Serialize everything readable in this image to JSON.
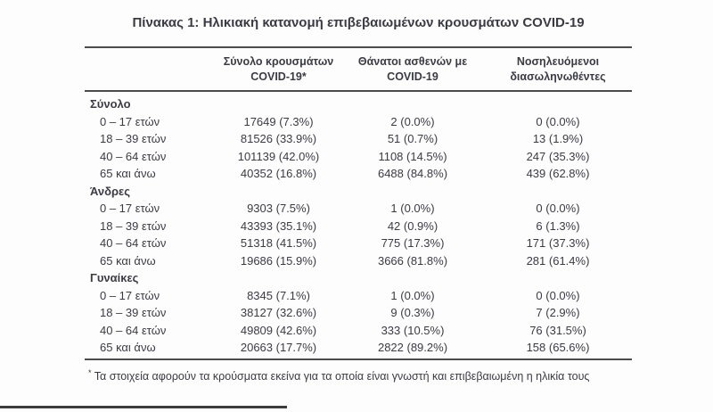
{
  "title": "Πίνακας 1: Ηλικιακή κατανομή επιβεβαιωμένων κρουσμάτων COVID-19",
  "colors": {
    "text": "#3b3b44",
    "rule": "#4b4b4b",
    "background": "#fdfdfd"
  },
  "table": {
    "col_headers": [
      {
        "line1": "Σύνολο κρουσμάτων",
        "line2": "COVID-19*"
      },
      {
        "line1": "Θάνατοι ασθενών με",
        "line2": "COVID-19"
      },
      {
        "line1": "Νοσηλευόμενοι",
        "line2": "διασωληνωθέντες"
      }
    ],
    "sections": [
      {
        "label": "Σύνολο",
        "rows": [
          {
            "label": "0 – 17 ετών",
            "cases": "17649 (7.3%)",
            "deaths": "2 (0.0%)",
            "intubated": "0 (0.0%)"
          },
          {
            "label": "18 – 39 ετών",
            "cases": "81526 (33.9%)",
            "deaths": "51 (0.7%)",
            "intubated": "13 (1.9%)"
          },
          {
            "label": "40 – 64 ετών",
            "cases": "101139 (42.0%)",
            "deaths": "1108 (14.5%)",
            "intubated": "247 (35.3%)"
          },
          {
            "label": "65 και άνω",
            "cases": "40352 (16.8%)",
            "deaths": "6488 (84.8%)",
            "intubated": "439 (62.8%)"
          }
        ]
      },
      {
        "label": "Άνδρες",
        "rows": [
          {
            "label": "0 – 17 ετών",
            "cases": "9303 (7.5%)",
            "deaths": "1 (0.0%)",
            "intubated": "0 (0.0%)"
          },
          {
            "label": "18 – 39 ετών",
            "cases": "43393 (35.1%)",
            "deaths": "42 (0.9%)",
            "intubated": "6 (1.3%)"
          },
          {
            "label": "40 – 64 ετών",
            "cases": "51318 (41.5%)",
            "deaths": "775 (17.3%)",
            "intubated": "171 (37.3%)"
          },
          {
            "label": "65 και άνω",
            "cases": "19686 (15.9%)",
            "deaths": "3666 (81.8%)",
            "intubated": "281 (61.4%)"
          }
        ]
      },
      {
        "label": "Γυναίκες",
        "rows": [
          {
            "label": "0 – 17 ετών",
            "cases": "8345 (7.1%)",
            "deaths": "1 (0.0%)",
            "intubated": "0 (0.0%)"
          },
          {
            "label": "18 – 39 ετών",
            "cases": "38127 (32.6%)",
            "deaths": "9 (0.3%)",
            "intubated": "7 (2.9%)"
          },
          {
            "label": "40 – 64 ετών",
            "cases": "49809 (42.6%)",
            "deaths": "333 (10.5%)",
            "intubated": "76 (31.5%)"
          },
          {
            "label": "65 και άνω",
            "cases": "20663 (17.7%)",
            "deaths": "2822 (89.2%)",
            "intubated": "158 (65.6%)"
          }
        ]
      }
    ],
    "footnote_marker": "*",
    "footnote": "Τα στοιχεία αφορούν τα κρούσματα εκείνα για τα οποία είναι γνωστή και επιβεβαιωμένη η ηλικία τους"
  }
}
